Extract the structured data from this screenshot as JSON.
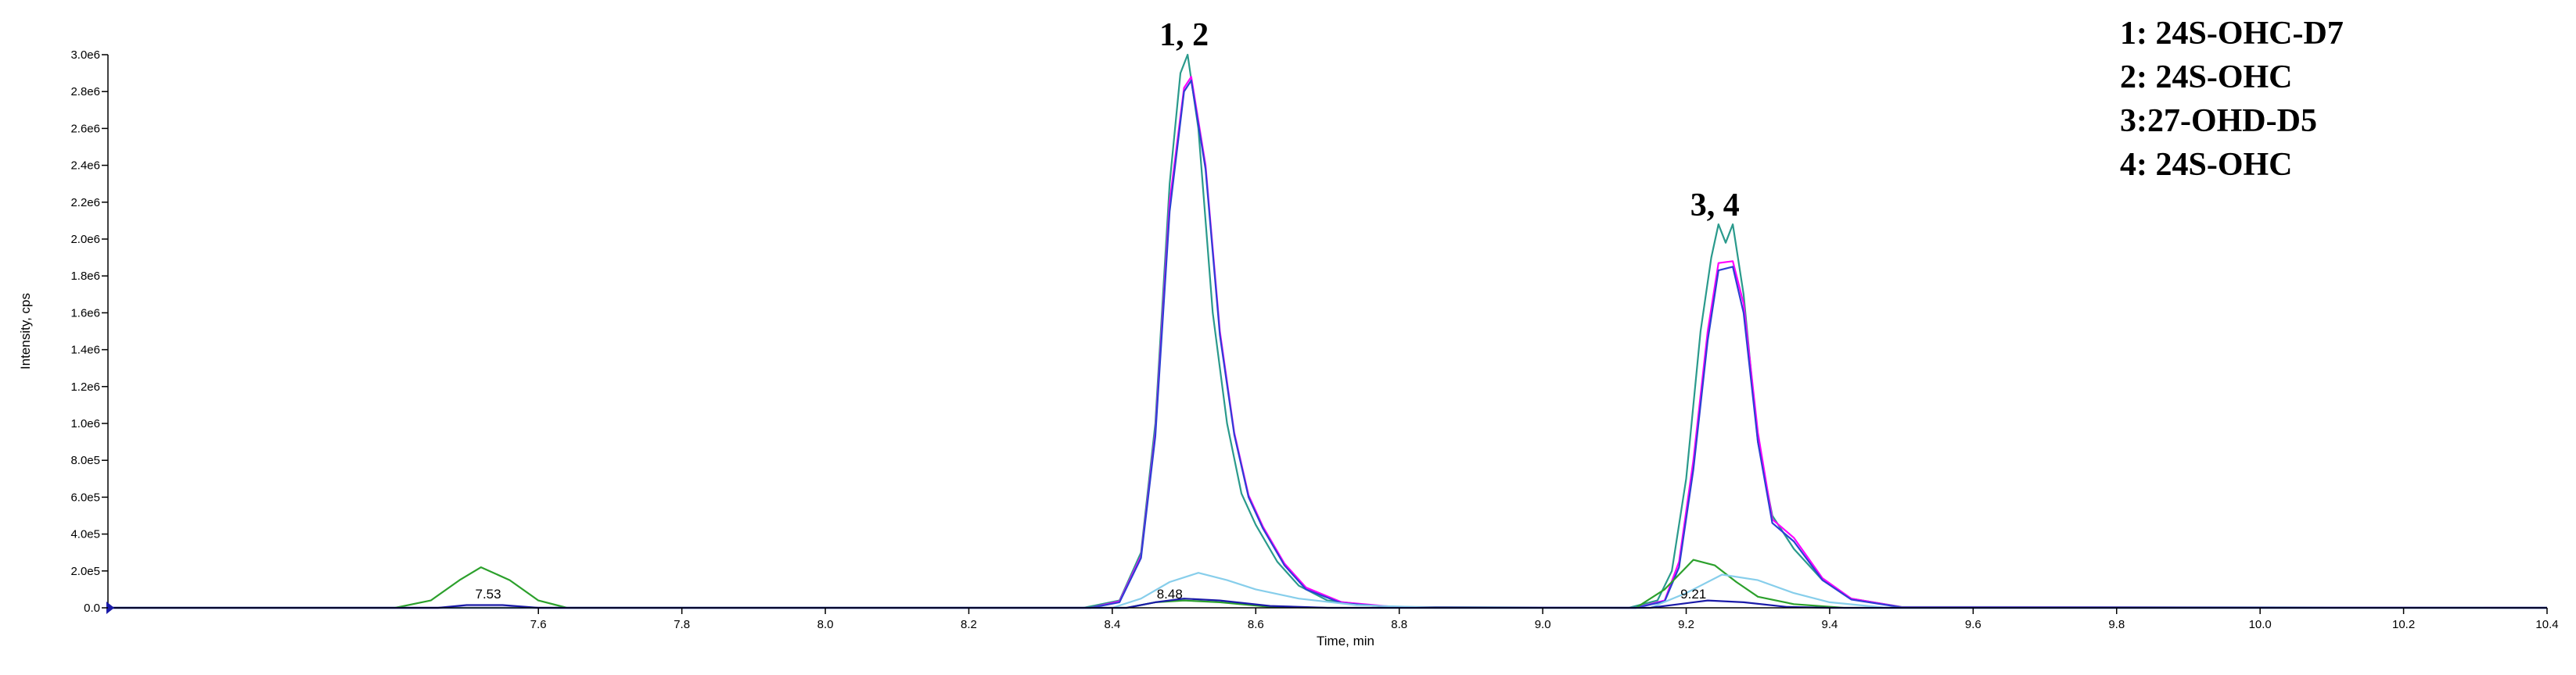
{
  "chart_data": {
    "type": "line",
    "xlabel": "Time, min",
    "ylabel": "Intensity, cps",
    "xlim": [
      7.0,
      10.4
    ],
    "ylim": [
      0,
      3000000
    ],
    "x_ticks": [
      "7.6",
      "7.8",
      "8.0",
      "8.2",
      "8.4",
      "8.6",
      "8.8",
      "9.0",
      "9.2",
      "9.4",
      "9.6",
      "9.8",
      "10.0",
      "10.2",
      "10.4"
    ],
    "y_ticks": [
      "0.0",
      "2.0e5",
      "4.0e5",
      "6.0e5",
      "8.0e5",
      "1.0e6",
      "1.2e6",
      "1.4e6",
      "1.6e6",
      "1.8e6",
      "2.0e6",
      "2.2e6",
      "2.4e6",
      "2.6e6",
      "2.8e6",
      "3.0e6"
    ],
    "peak_labels": [
      {
        "text": "7.53",
        "x": 7.53
      },
      {
        "text": "8.48",
        "x": 8.48
      },
      {
        "text": "9.21",
        "x": 9.21
      }
    ],
    "group_labels": [
      {
        "text": "1, 2",
        "x": 8.5
      },
      {
        "text": "3, 4",
        "x": 9.24
      }
    ],
    "legend": [
      "1: 24S-OHC-D7",
      "2: 24S-OHC",
      "3:27-OHD-D5",
      "4: 24S-OHC"
    ],
    "series": [
      {
        "color": "#2a9a8c",
        "points": [
          [
            7.0,
            0
          ],
          [
            8.36,
            0
          ],
          [
            8.41,
            40000
          ],
          [
            8.44,
            300000
          ],
          [
            8.46,
            1000000
          ],
          [
            8.48,
            2300000
          ],
          [
            8.495,
            2900000
          ],
          [
            8.505,
            3000000
          ],
          [
            8.52,
            2600000
          ],
          [
            8.54,
            1600000
          ],
          [
            8.56,
            1000000
          ],
          [
            8.58,
            620000
          ],
          [
            8.6,
            450000
          ],
          [
            8.63,
            250000
          ],
          [
            8.66,
            120000
          ],
          [
            8.7,
            40000
          ],
          [
            8.78,
            5000
          ],
          [
            9.12,
            0
          ],
          [
            9.16,
            40000
          ],
          [
            9.18,
            200000
          ],
          [
            9.2,
            700000
          ],
          [
            9.22,
            1500000
          ],
          [
            9.235,
            1900000
          ],
          [
            9.245,
            2080000
          ],
          [
            9.255,
            1980000
          ],
          [
            9.265,
            2080000
          ],
          [
            9.28,
            1700000
          ],
          [
            9.3,
            900000
          ],
          [
            9.32,
            500000
          ],
          [
            9.35,
            320000
          ],
          [
            9.39,
            150000
          ],
          [
            9.43,
            50000
          ],
          [
            9.5,
            5000
          ],
          [
            10.4,
            0
          ]
        ]
      },
      {
        "color": "#ff00ff",
        "points": [
          [
            7.0,
            0
          ],
          [
            8.37,
            0
          ],
          [
            8.41,
            35000
          ],
          [
            8.44,
            280000
          ],
          [
            8.46,
            950000
          ],
          [
            8.48,
            2200000
          ],
          [
            8.5,
            2820000
          ],
          [
            8.51,
            2880000
          ],
          [
            8.53,
            2400000
          ],
          [
            8.55,
            1500000
          ],
          [
            8.57,
            950000
          ],
          [
            8.59,
            610000
          ],
          [
            8.61,
            440000
          ],
          [
            8.64,
            240000
          ],
          [
            8.67,
            110000
          ],
          [
            8.72,
            30000
          ],
          [
            8.8,
            3000
          ],
          [
            9.13,
            0
          ],
          [
            9.17,
            40000
          ],
          [
            9.19,
            250000
          ],
          [
            9.21,
            800000
          ],
          [
            9.23,
            1500000
          ],
          [
            9.245,
            1870000
          ],
          [
            9.265,
            1880000
          ],
          [
            9.28,
            1650000
          ],
          [
            9.3,
            950000
          ],
          [
            9.32,
            480000
          ],
          [
            9.35,
            380000
          ],
          [
            9.39,
            160000
          ],
          [
            9.43,
            50000
          ],
          [
            9.5,
            4000
          ],
          [
            10.4,
            0
          ]
        ]
      },
      {
        "color": "#2d3fd4",
        "points": [
          [
            7.0,
            0
          ],
          [
            8.37,
            0
          ],
          [
            8.41,
            30000
          ],
          [
            8.44,
            270000
          ],
          [
            8.46,
            930000
          ],
          [
            8.48,
            2150000
          ],
          [
            8.5,
            2800000
          ],
          [
            8.51,
            2860000
          ],
          [
            8.53,
            2380000
          ],
          [
            8.55,
            1480000
          ],
          [
            8.57,
            940000
          ],
          [
            8.59,
            600000
          ],
          [
            8.61,
            430000
          ],
          [
            8.64,
            230000
          ],
          [
            8.67,
            100000
          ],
          [
            8.72,
            25000
          ],
          [
            8.8,
            2000
          ],
          [
            9.13,
            0
          ],
          [
            9.17,
            35000
          ],
          [
            9.19,
            220000
          ],
          [
            9.21,
            750000
          ],
          [
            9.23,
            1450000
          ],
          [
            9.245,
            1830000
          ],
          [
            9.265,
            1850000
          ],
          [
            9.28,
            1600000
          ],
          [
            9.3,
            900000
          ],
          [
            9.32,
            460000
          ],
          [
            9.35,
            360000
          ],
          [
            9.39,
            150000
          ],
          [
            9.43,
            45000
          ],
          [
            9.5,
            3000
          ],
          [
            10.4,
            0
          ]
        ]
      },
      {
        "color": "#2ca02c",
        "points": [
          [
            7.0,
            0
          ],
          [
            7.4,
            0
          ],
          [
            7.45,
            40000
          ],
          [
            7.49,
            150000
          ],
          [
            7.52,
            220000
          ],
          [
            7.56,
            150000
          ],
          [
            7.6,
            40000
          ],
          [
            7.64,
            0
          ],
          [
            8.42,
            0
          ],
          [
            8.46,
            30000
          ],
          [
            8.5,
            40000
          ],
          [
            8.55,
            30000
          ],
          [
            8.62,
            5000
          ],
          [
            8.7,
            0
          ],
          [
            9.13,
            0
          ],
          [
            9.17,
            100000
          ],
          [
            9.21,
            260000
          ],
          [
            9.24,
            230000
          ],
          [
            9.27,
            140000
          ],
          [
            9.3,
            60000
          ],
          [
            9.35,
            20000
          ],
          [
            9.42,
            0
          ],
          [
            10.4,
            0
          ]
        ]
      },
      {
        "color": "#87ceeb",
        "points": [
          [
            7.0,
            0
          ],
          [
            8.4,
            0
          ],
          [
            8.44,
            50000
          ],
          [
            8.48,
            140000
          ],
          [
            8.52,
            190000
          ],
          [
            8.56,
            150000
          ],
          [
            8.6,
            100000
          ],
          [
            8.66,
            50000
          ],
          [
            8.74,
            15000
          ],
          [
            8.85,
            0
          ],
          [
            9.15,
            0
          ],
          [
            9.2,
            80000
          ],
          [
            9.25,
            180000
          ],
          [
            9.3,
            150000
          ],
          [
            9.35,
            80000
          ],
          [
            9.4,
            30000
          ],
          [
            9.48,
            0
          ],
          [
            10.4,
            0
          ]
        ]
      },
      {
        "color": "#1a1aa8",
        "points": [
          [
            7.0,
            0
          ],
          [
            7.46,
            0
          ],
          [
            7.5,
            15000
          ],
          [
            7.55,
            15000
          ],
          [
            7.6,
            0
          ],
          [
            8.42,
            0
          ],
          [
            8.46,
            30000
          ],
          [
            8.5,
            50000
          ],
          [
            8.55,
            40000
          ],
          [
            8.62,
            10000
          ],
          [
            8.7,
            0
          ],
          [
            9.15,
            0
          ],
          [
            9.19,
            20000
          ],
          [
            9.23,
            40000
          ],
          [
            9.28,
            30000
          ],
          [
            9.34,
            5000
          ],
          [
            9.4,
            0
          ],
          [
            10.4,
            0
          ]
        ]
      }
    ]
  }
}
